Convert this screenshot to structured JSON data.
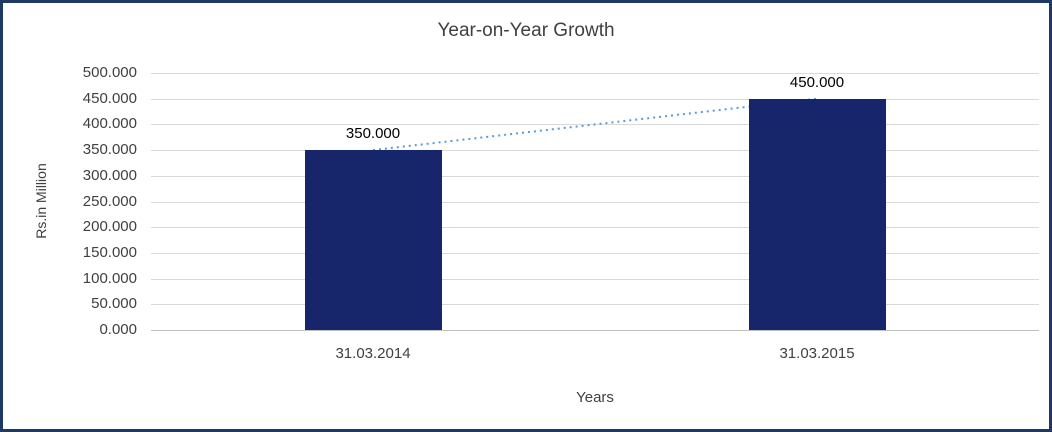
{
  "chart_data": {
    "type": "bar",
    "title": "Year-on-Year Growth",
    "xlabel": "Years",
    "ylabel": "Rs.in Million",
    "categories": [
      "31.03.2014",
      "31.03.2015"
    ],
    "values": [
      350000,
      450000
    ],
    "value_labels": [
      "350.000",
      "450.000"
    ],
    "ylim": [
      0,
      500000
    ],
    "ytick_step": 50000,
    "ytick_labels": [
      "0.000",
      "50.000",
      "100.000",
      "150.000",
      "200.000",
      "250.000",
      "300.000",
      "350.000",
      "400.000",
      "450.000",
      "500.000"
    ],
    "grid": true,
    "legend_position": "none",
    "bar_color": "#17256B",
    "trendline_color": "#5B9BD5",
    "trendline_style": "dotted",
    "frame_color": "#1F3864",
    "gridline_color": "#D9D9D9"
  }
}
